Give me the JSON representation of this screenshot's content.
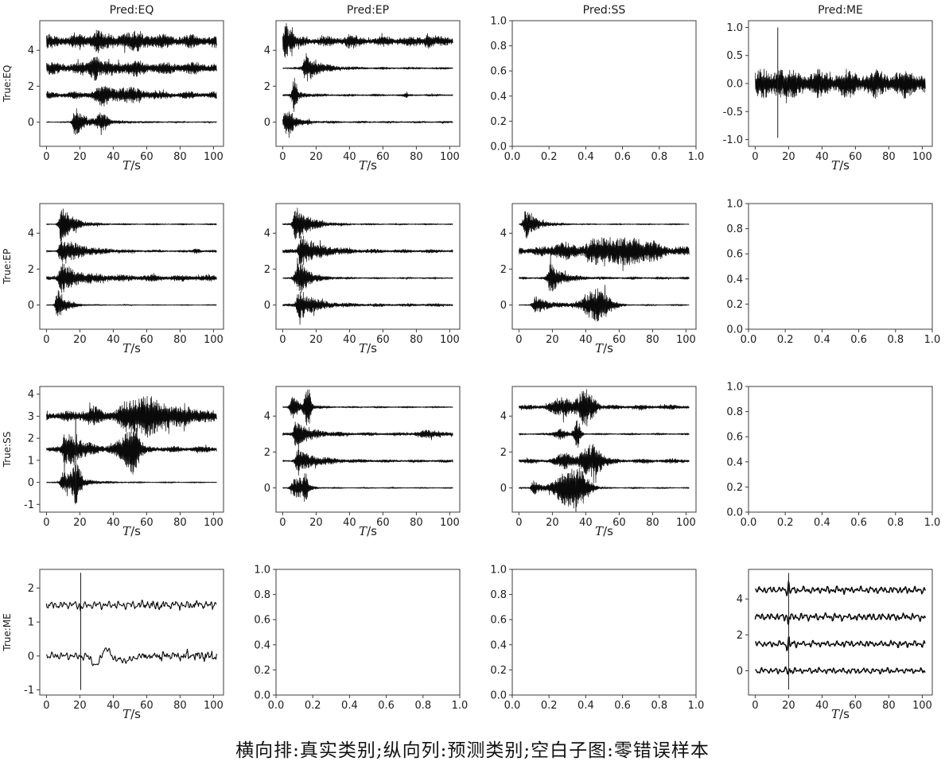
{
  "caption": "横向排:真实类别;纵向列:预测类别;空白子图:零错误样本",
  "chart_data": {
    "type": "line",
    "description": "4x4 grid of seismogram waveform subplots arranged as a confusion matrix; rows = true class, columns = predicted class; blank subplots mean zero misclassified samples",
    "grid": {
      "rows": 4,
      "cols": 4
    },
    "col_titles": [
      "Pred:EQ",
      "Pred:EP",
      "Pred:SS",
      "Pred:ME"
    ],
    "row_labels": [
      "True:EQ",
      "True:EP",
      "True:SS",
      "True:ME"
    ],
    "xlabel": "T/s",
    "x_axis": {
      "lim": [
        -4,
        106
      ],
      "ticks": [
        0,
        20,
        40,
        60,
        80,
        100
      ],
      "labels": [
        "0",
        "20",
        "40",
        "60",
        "80",
        "100"
      ]
    },
    "y_axis_default": {
      "lim": [
        -1.35,
        5.65
      ],
      "ticks": [
        0,
        2,
        4
      ],
      "labels": [
        "0",
        "2",
        "4"
      ]
    },
    "empty_axis": {
      "lim": [
        0,
        1
      ],
      "ticks": [
        0,
        0.2,
        0.4,
        0.6,
        0.8,
        1.0
      ],
      "labels": [
        "0.0",
        "0.2",
        "0.4",
        "0.6",
        "0.8",
        "1.0"
      ]
    },
    "subplots": [
      {
        "r": 0,
        "c": 0,
        "seed": 101,
        "traces": [
          {
            "offset": 4.5,
            "mode": "dense",
            "base": 0.3,
            "bursts": [
              [
                "g",
                30,
                2.5,
                0.4
              ],
              [
                "g",
                52,
                8,
                0.22
              ]
            ]
          },
          {
            "offset": 3.0,
            "mode": "dense",
            "base": 0.27,
            "bursts": [
              [
                "g",
                29,
                2,
                0.6
              ],
              [
                "g",
                48,
                9,
                0.12
              ]
            ]
          },
          {
            "offset": 1.5,
            "mode": "dense",
            "base": 0.16,
            "bursts": [
              [
                "g",
                33,
                3,
                0.35
              ],
              [
                "g",
                47,
                9,
                0.28
              ]
            ]
          },
          {
            "offset": 0.0,
            "mode": "dense",
            "base": 0.03,
            "bursts": [
              [
                "d",
                17.5,
                5,
                0.85
              ],
              [
                "g",
                33,
                2.5,
                0.5
              ],
              [
                "d",
                36,
                18,
                0.08
              ]
            ]
          }
        ]
      },
      {
        "r": 0,
        "c": 1,
        "seed": 102,
        "traces": [
          {
            "offset": 4.5,
            "mode": "dense",
            "base": 0.22,
            "bursts": [
              [
                "g",
                2,
                1.2,
                0.95
              ],
              [
                "g",
                5.5,
                1,
                0.6
              ],
              [
                "g",
                40,
                2.5,
                0.18
              ],
              [
                "g",
                87,
                1.5,
                0.33
              ]
            ]
          },
          {
            "offset": 3.0,
            "mode": "dense",
            "base": 0.05,
            "bursts": [
              [
                "d",
                14,
                8,
                0.8
              ]
            ]
          },
          {
            "offset": 1.5,
            "mode": "dense",
            "base": 0.05,
            "bursts": [
              [
                "g",
                7,
                1,
                0.9
              ],
              [
                "d",
                8,
                6,
                0.22
              ],
              [
                "g",
                74,
                0.6,
                0.1
              ]
            ]
          },
          {
            "offset": 0.0,
            "mode": "dense",
            "base": 0.045,
            "bursts": [
              [
                "g",
                3,
                1.8,
                0.9
              ],
              [
                "d",
                6,
                7,
                0.28
              ]
            ]
          }
        ]
      },
      {
        "r": 0,
        "c": 2,
        "empty": true
      },
      {
        "r": 0,
        "c": 3,
        "seed": 104,
        "y": {
          "lim": [
            -1.12,
            1.12
          ],
          "ticks": [
            -1,
            -0.5,
            0,
            0.5,
            1
          ],
          "labels": [
            "-1.0",
            "-0.5",
            "0.0",
            "0.5",
            "1.0"
          ]
        },
        "traces": [
          {
            "offset": 0.0,
            "mode": "dense",
            "base": 0.2,
            "bursts": [
              [
                "g",
                14,
                2,
                0.12
              ]
            ]
          }
        ],
        "spikes": [
          [
            13.5,
            -0.97,
            1.0
          ]
        ]
      },
      {
        "r": 1,
        "c": 0,
        "seed": 201,
        "traces": [
          {
            "offset": 4.5,
            "mode": "dense",
            "base": 0.035,
            "bursts": [
              [
                "d",
                9,
                7,
                1.0
              ]
            ]
          },
          {
            "offset": 3.0,
            "mode": "dense",
            "base": 0.05,
            "bursts": [
              [
                "d",
                9,
                12,
                0.8
              ],
              [
                "g",
                90,
                1.5,
                0.13
              ]
            ]
          },
          {
            "offset": 1.5,
            "mode": "dense",
            "base": 0.14,
            "bursts": [
              [
                "d",
                9,
                11,
                0.7
              ]
            ]
          },
          {
            "offset": 0.0,
            "mode": "dense",
            "base": 0.025,
            "bursts": [
              [
                "d",
                7,
                5,
                0.9
              ]
            ]
          }
        ]
      },
      {
        "r": 1,
        "c": 1,
        "seed": 202,
        "traces": [
          {
            "offset": 4.5,
            "mode": "dense",
            "base": 0.035,
            "bursts": [
              [
                "d",
                8,
                8,
                1.0
              ]
            ]
          },
          {
            "offset": 3.0,
            "mode": "dense",
            "base": 0.08,
            "bursts": [
              [
                "d",
                11,
                11,
                0.9
              ]
            ]
          },
          {
            "offset": 1.5,
            "mode": "dense",
            "base": 0.04,
            "bursts": [
              [
                "g",
                9,
                1.5,
                0.6
              ],
              [
                "d",
                11,
                7,
                0.75
              ]
            ]
          },
          {
            "offset": 0.0,
            "mode": "dense",
            "base": 0.07,
            "bursts": [
              [
                "d",
                10,
                9,
                0.85
              ]
            ]
          }
        ]
      },
      {
        "r": 1,
        "c": 2,
        "seed": 203,
        "traces": [
          {
            "offset": 4.5,
            "mode": "dense",
            "base": 0.03,
            "bursts": [
              [
                "d",
                4,
                7,
                0.75
              ]
            ]
          },
          {
            "offset": 3.0,
            "mode": "dense",
            "base": 0.2,
            "bursts": [
              [
                "g",
                26,
                5,
                0.3
              ],
              [
                "g",
                46,
                5,
                0.5
              ],
              [
                "g",
                57,
                5,
                0.45
              ],
              [
                "g",
                68,
                5,
                0.55
              ],
              [
                "g",
                80,
                6,
                0.3
              ]
            ]
          },
          {
            "offset": 1.5,
            "mode": "dense",
            "base": 0.06,
            "bursts": [
              [
                "d",
                19,
                7,
                0.8
              ]
            ]
          },
          {
            "offset": 0.0,
            "mode": "dense",
            "base": 0.035,
            "bursts": [
              [
                "d",
                10,
                10,
                0.45
              ],
              [
                "g",
                47,
                6,
                0.9
              ]
            ]
          }
        ]
      },
      {
        "r": 1,
        "c": 3,
        "empty": true
      },
      {
        "r": 2,
        "c": 0,
        "seed": 301,
        "y": {
          "lim": [
            -1.35,
            4.35
          ],
          "ticks": [
            -1,
            0,
            1,
            2,
            3,
            4
          ],
          "labels": [
            "-1",
            "0",
            "1",
            "2",
            "3",
            "4"
          ]
        },
        "traces": [
          {
            "offset": 3.0,
            "mode": "dense",
            "base": 0.18,
            "bursts": [
              [
                "g",
                27,
                4,
                0.25
              ],
              [
                "g",
                50,
                5,
                0.55
              ],
              [
                "g",
                60,
                4,
                0.65
              ],
              [
                "g",
                70,
                5,
                0.45
              ],
              [
                "g",
                85,
                6,
                0.25
              ]
            ]
          },
          {
            "offset": 1.5,
            "mode": "dense",
            "base": 0.11,
            "bursts": [
              [
                "g",
                11,
                1,
                0.7
              ],
              [
                "d",
                14,
                9,
                0.65
              ],
              [
                "g",
                48,
                4,
                0.6
              ],
              [
                "g",
                53,
                2.5,
                0.75
              ]
            ]
          },
          {
            "offset": 0.0,
            "mode": "dense",
            "base": 0.025,
            "bursts": [
              [
                "d",
                10,
                9,
                0.5
              ],
              [
                "g",
                18,
                2,
                0.8
              ]
            ]
          }
        ],
        "spikes": [
          [
            17.5,
            -0.9,
            3.2
          ]
        ]
      },
      {
        "r": 2,
        "c": 1,
        "seed": 302,
        "traces": [
          {
            "offset": 4.5,
            "mode": "dense",
            "base": 0.04,
            "bursts": [
              [
                "d",
                6,
                6,
                0.6
              ],
              [
                "g",
                15,
                1.5,
                1.0
              ]
            ]
          },
          {
            "offset": 3.0,
            "mode": "dense",
            "base": 0.07,
            "bursts": [
              [
                "d",
                8,
                9,
                0.7
              ],
              [
                "g",
                88,
                6,
                0.15
              ]
            ]
          },
          {
            "offset": 1.5,
            "mode": "dense",
            "base": 0.06,
            "bursts": [
              [
                "d",
                9,
                12,
                0.55
              ]
            ]
          },
          {
            "offset": 0.0,
            "mode": "dense",
            "base": 0.03,
            "bursts": [
              [
                "g",
                7,
                1.5,
                0.5
              ],
              [
                "d",
                10,
                4,
                0.55
              ],
              [
                "g",
                13.5,
                1,
                0.8
              ]
            ]
          }
        ]
      },
      {
        "r": 2,
        "c": 2,
        "seed": 303,
        "traces": [
          {
            "offset": 4.5,
            "mode": "dense",
            "base": 0.1,
            "bursts": [
              [
                "g",
                23,
                4,
                0.3
              ],
              [
                "g",
                29,
                2.5,
                0.35
              ],
              [
                "g",
                40,
                4,
                0.95
              ]
            ]
          },
          {
            "offset": 3.0,
            "mode": "dense",
            "base": 0.045,
            "bursts": [
              [
                "g",
                25,
                3,
                0.28
              ],
              [
                "g",
                35,
                1.5,
                0.75
              ]
            ]
          },
          {
            "offset": 1.5,
            "mode": "dense",
            "base": 0.1,
            "bursts": [
              [
                "g",
                28,
                4,
                0.35
              ],
              [
                "g",
                44,
                5,
                0.85
              ]
            ]
          },
          {
            "offset": 0.0,
            "mode": "dense",
            "base": 0.035,
            "bursts": [
              [
                "d",
                9,
                4,
                0.4
              ],
              [
                "g",
                27,
                5,
                0.75
              ],
              [
                "g",
                36,
                5,
                0.9
              ]
            ]
          }
        ]
      },
      {
        "r": 2,
        "c": 3,
        "empty": true
      },
      {
        "r": 3,
        "c": 0,
        "seed": 401,
        "y": {
          "lim": [
            -1.15,
            2.55
          ],
          "ticks": [
            -1,
            0,
            1,
            2
          ],
          "labels": [
            "-1",
            "0",
            "1",
            "2"
          ]
        },
        "traces": [
          {
            "offset": 1.5,
            "mode": "smooth",
            "base": 0.07,
            "lw": 1.1,
            "bursts": [
              [
                "g",
                20.5,
                0.6,
                0.22
              ]
            ],
            "rough": [
              55,
              0.06
            ]
          },
          {
            "offset": 0.0,
            "mode": "smooth",
            "base": 0.07,
            "lw": 1.1,
            "bursts": [
              [
                "g",
                20.5,
                0.6,
                0.22
              ]
            ],
            "features": [
              [
                30,
                2.2,
                -0.32
              ],
              [
                35,
                2.5,
                0.22
              ],
              [
                44,
                3,
                -0.12
              ],
              [
                50,
                2.5,
                -0.1
              ]
            ],
            "rough": [
              58,
              0.07
            ]
          }
        ],
        "spikes": [
          [
            20.5,
            -1.0,
            2.45
          ]
        ]
      },
      {
        "r": 3,
        "c": 1,
        "empty": true
      },
      {
        "r": 3,
        "c": 2,
        "empty": true
      },
      {
        "r": 3,
        "c": 3,
        "seed": 404,
        "traces": [
          {
            "offset": 4.5,
            "mode": "smooth",
            "base": 0.12,
            "lw": 1.5,
            "bursts": [
              [
                "g",
                20,
                0.7,
                0.3
              ]
            ]
          },
          {
            "offset": 3.0,
            "mode": "smooth",
            "base": 0.13,
            "lw": 1.5,
            "bursts": [
              [
                "g",
                20,
                0.7,
                0.3
              ]
            ]
          },
          {
            "offset": 1.5,
            "mode": "smooth",
            "base": 0.11,
            "lw": 1.5,
            "bursts": [
              [
                "g",
                20,
                0.7,
                0.3
              ]
            ]
          },
          {
            "offset": 0.0,
            "mode": "smooth",
            "base": 0.1,
            "lw": 1.5,
            "bursts": [
              [
                "g",
                20,
                0.7,
                0.3
              ]
            ]
          }
        ],
        "spikes": [
          [
            20,
            -1.05,
            5.45
          ]
        ]
      }
    ]
  }
}
